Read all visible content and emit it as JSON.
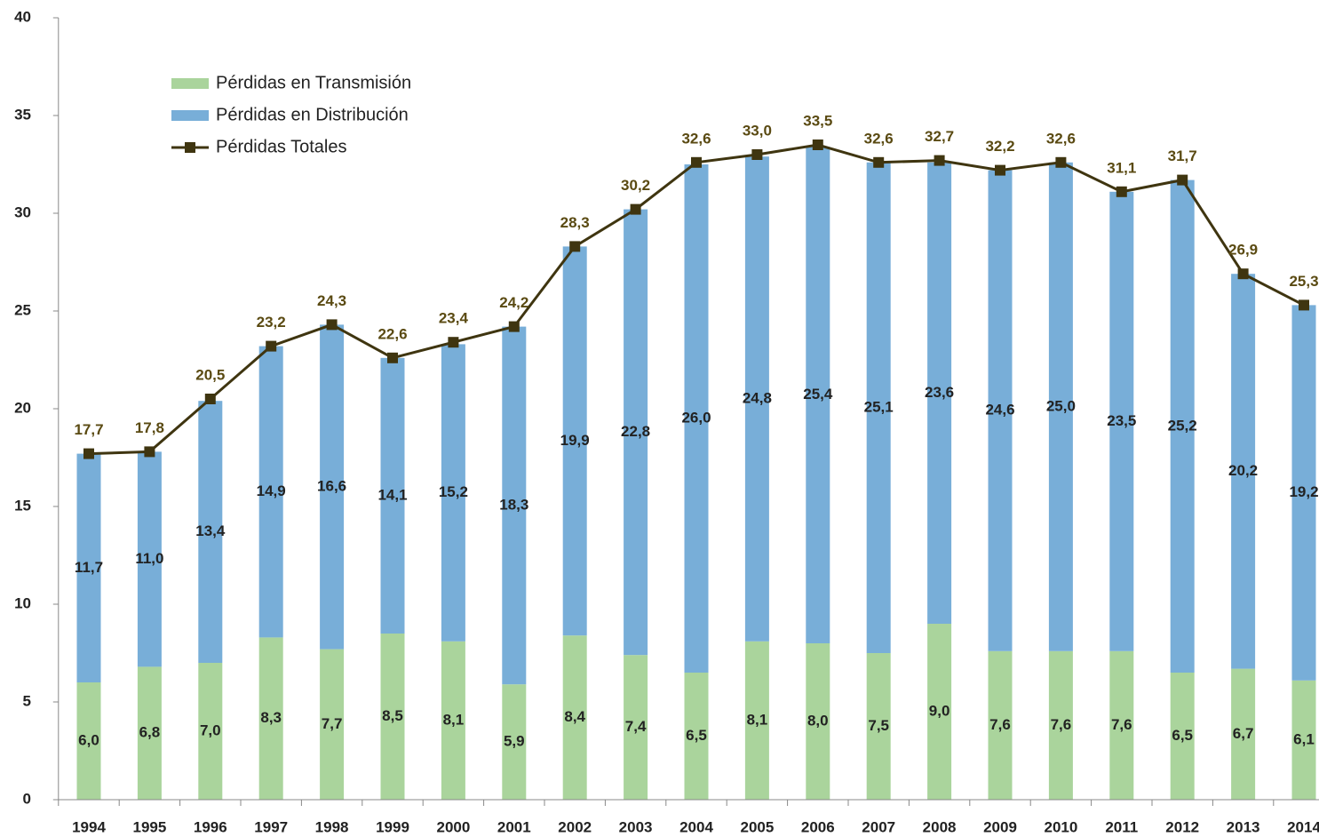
{
  "chart_data": {
    "type": "stacked-bar-line",
    "categories": [
      "1994",
      "1995",
      "1996",
      "1997",
      "1998",
      "1999",
      "2000",
      "2001",
      "2002",
      "2003",
      "2004",
      "2005",
      "2006",
      "2007",
      "2008",
      "2009",
      "2010",
      "2011",
      "2012",
      "2013",
      "2014"
    ],
    "series": [
      {
        "name": "Pérdidas en Transmisión",
        "kind": "bar",
        "color": "#aad49c",
        "values": [
          6.0,
          6.8,
          7.0,
          8.3,
          7.7,
          8.5,
          8.1,
          5.9,
          8.4,
          7.4,
          6.5,
          8.1,
          8.0,
          7.5,
          9.0,
          7.6,
          7.6,
          7.6,
          6.5,
          6.7,
          6.1
        ],
        "value_labels": [
          "6,0",
          "6,8",
          "7,0",
          "8,3",
          "7,7",
          "8,5",
          "8,1",
          "5,9",
          "8,4",
          "7,4",
          "6,5",
          "8,1",
          "8,0",
          "7,5",
          "9,0",
          "7,6",
          "7,6",
          "7,6",
          "6,5",
          "6,7",
          "6,1"
        ]
      },
      {
        "name": "Pérdidas en Distribución",
        "kind": "bar",
        "color": "#78aed8",
        "values": [
          11.7,
          11.0,
          13.4,
          14.9,
          16.6,
          14.1,
          15.2,
          18.3,
          19.9,
          22.8,
          26.0,
          24.8,
          25.4,
          25.1,
          23.6,
          24.6,
          25.0,
          23.5,
          25.2,
          20.2,
          19.2
        ],
        "value_labels": [
          "11,7",
          "11,0",
          "13,4",
          "14,9",
          "16,6",
          "14,1",
          "15,2",
          "18,3",
          "19,9",
          "22,8",
          "26,0",
          "24,8",
          "25,4",
          "25,1",
          "23,6",
          "24,6",
          "25,0",
          "23,5",
          "25,2",
          "20,2",
          "19,2"
        ]
      },
      {
        "name": "Pérdidas Totales",
        "kind": "line",
        "color": "#3f3510",
        "values": [
          17.7,
          17.8,
          20.5,
          23.2,
          24.3,
          22.6,
          23.4,
          24.2,
          28.3,
          30.2,
          32.6,
          33.0,
          33.5,
          32.6,
          32.7,
          32.2,
          32.6,
          31.1,
          31.7,
          26.9,
          25.3
        ],
        "value_labels": [
          "17,7",
          "17,8",
          "20,5",
          "23,2",
          "24,3",
          "22,6",
          "23,4",
          "24,2",
          "28,3",
          "30,2",
          "32,6",
          "33,0",
          "33,5",
          "32,6",
          "32,7",
          "32,2",
          "32,6",
          "31,1",
          "31,7",
          "26,9",
          "25,3"
        ]
      }
    ],
    "ylim": [
      0,
      40
    ],
    "yticks": [
      0,
      5,
      10,
      15,
      20,
      25,
      30,
      35,
      40
    ],
    "grid": false,
    "legend": "upper left"
  }
}
